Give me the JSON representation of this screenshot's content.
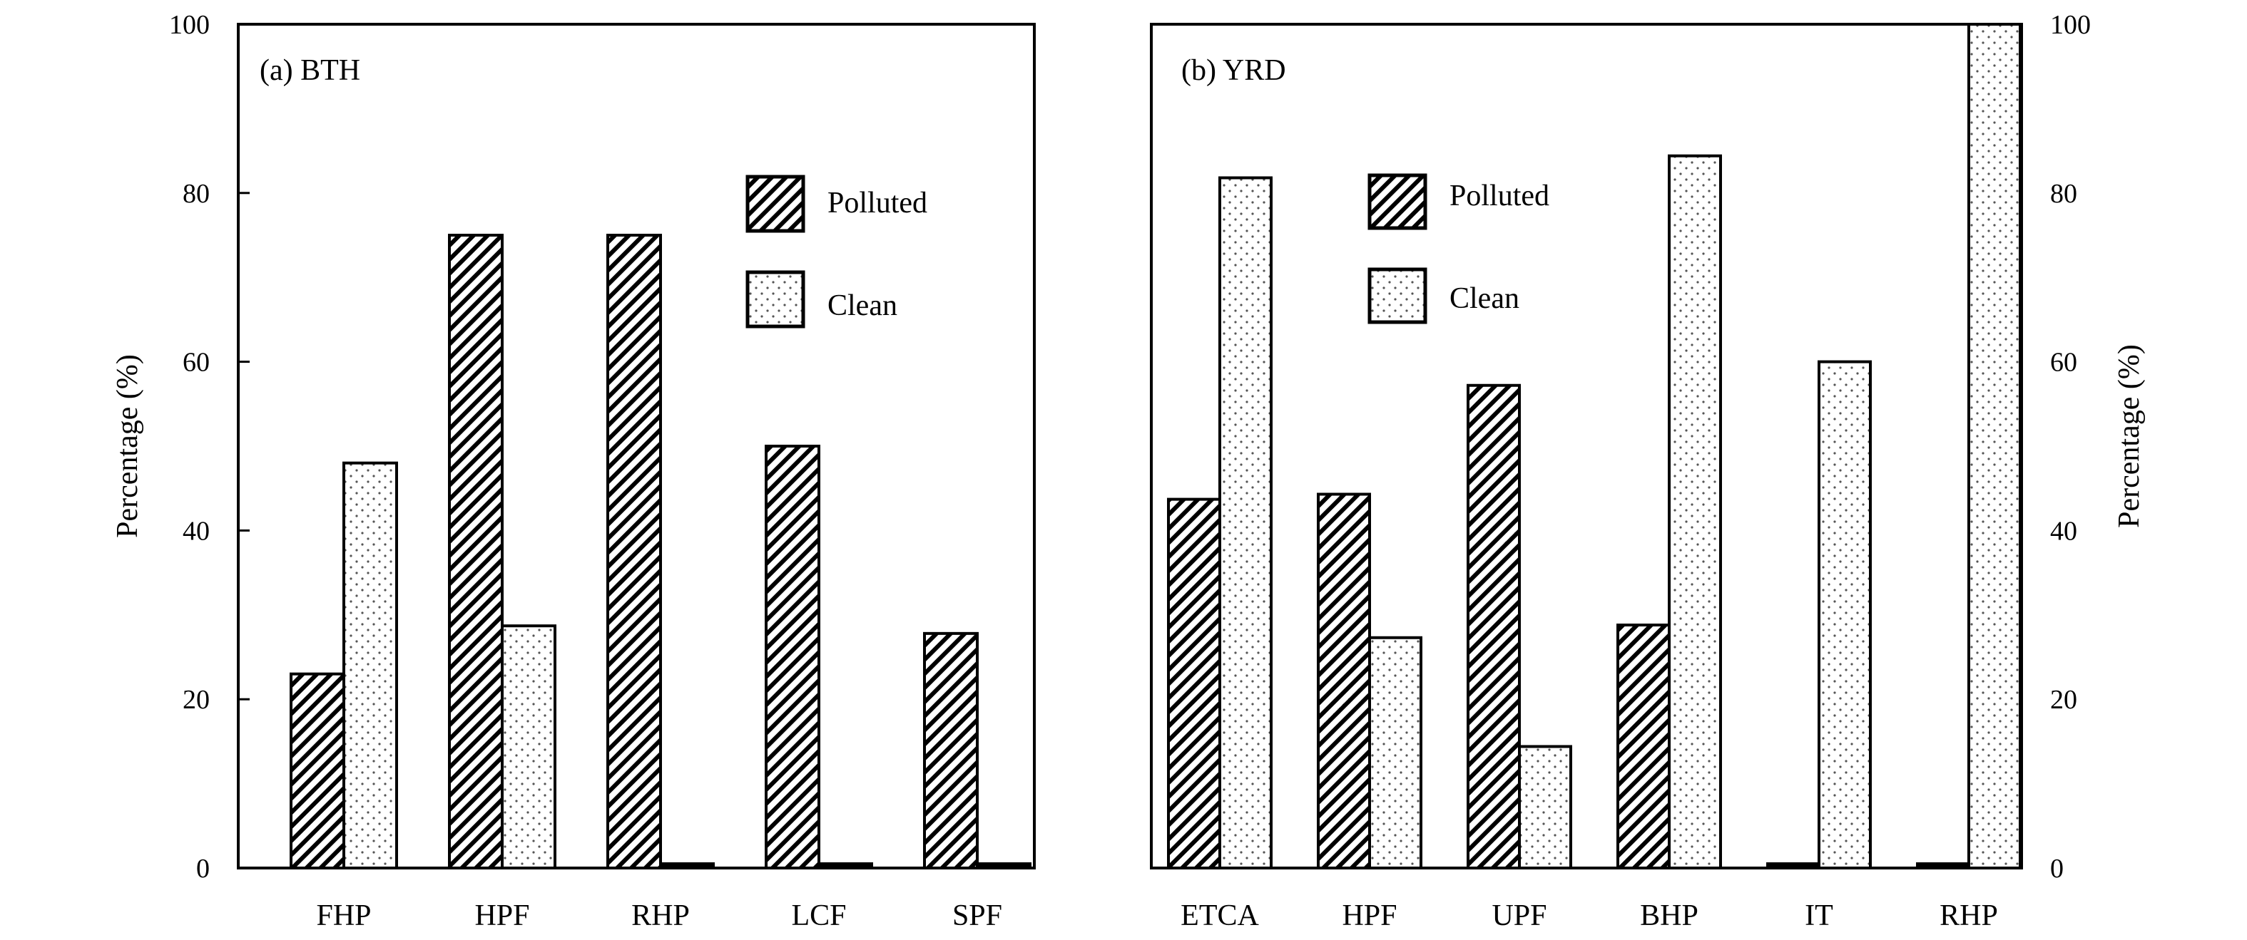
{
  "chart_data": [
    {
      "type": "bar",
      "panel_label": "(a) BTH",
      "categories": [
        "FHP",
        "HPF",
        "RHP",
        "LCF",
        "SPF"
      ],
      "series": [
        {
          "name": "Polluted",
          "values": [
            23,
            75,
            75,
            50,
            27.8
          ]
        },
        {
          "name": "Clean",
          "values": [
            48,
            28.7,
            0,
            0,
            0
          ]
        }
      ],
      "ylabel": "Percentage (%)",
      "ylim": [
        0,
        100
      ],
      "yticks": [
        "0",
        "20",
        "40",
        "60",
        "80",
        "100"
      ],
      "ytick_values": [
        0,
        20,
        40,
        60,
        80,
        100
      ],
      "y_axis_side": "left",
      "legend": [
        "Polluted",
        "Clean"
      ],
      "legend_position": "top-right"
    },
    {
      "type": "bar",
      "panel_label": "(b) YRD",
      "categories": [
        "ETCA",
        "HPF",
        "UPF",
        "BHP",
        "IT",
        "RHP"
      ],
      "series": [
        {
          "name": "Polluted",
          "values": [
            43.7,
            44.3,
            57.2,
            28.8,
            0,
            0
          ]
        },
        {
          "name": "Clean",
          "values": [
            81.8,
            27.3,
            14.4,
            84.4,
            60,
            100
          ]
        }
      ],
      "ylabel": "Percentage (%)",
      "ylim": [
        0,
        100
      ],
      "yticks": [
        "0",
        "20",
        "40",
        "60",
        "80",
        "100"
      ],
      "ytick_values": [
        0,
        20,
        40,
        60,
        80,
        100
      ],
      "y_axis_side": "right",
      "legend": [
        "Polluted",
        "Clean"
      ],
      "legend_position": "top-center"
    }
  ]
}
